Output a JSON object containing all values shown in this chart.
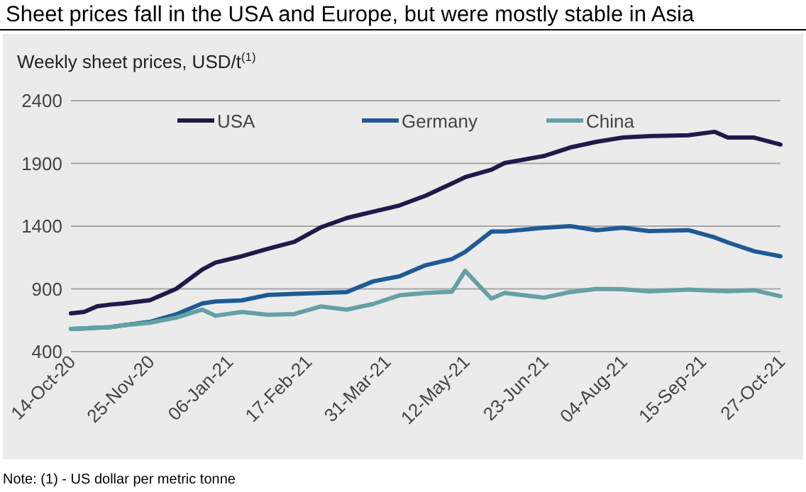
{
  "chart_data": {
    "type": "line",
    "title": "Sheet prices fall in the USA and Europe, but were mostly stable in Asia",
    "subtitle": "Weekly sheet prices, USD/t$^{(1)}$",
    "x": [
      "2020-10-14",
      "2020-10-21",
      "2020-10-28",
      "2020-11-04",
      "2020-11-11",
      "2020-11-25",
      "2020-12-09",
      "2020-12-23",
      "2020-12-30",
      "2021-01-13",
      "2021-01-27",
      "2021-02-10",
      "2021-02-24",
      "2021-03-10",
      "2021-03-24",
      "2021-04-07",
      "2021-04-21",
      "2021-05-05",
      "2021-05-12",
      "2021-05-26",
      "2021-06-02",
      "2021-06-23",
      "2021-07-07",
      "2021-07-21",
      "2021-08-04",
      "2021-08-18",
      "2021-09-08",
      "2021-09-22",
      "2021-09-29",
      "2021-10-13",
      "2021-10-27"
    ],
    "series": [
      {
        "name": "USA",
        "color": "#1f1a4a",
        "values": [
          705,
          716,
          762,
          775,
          784,
          810,
          900,
          1055,
          1110,
          1160,
          1220,
          1275,
          1390,
          1465,
          1515,
          1565,
          1643,
          1740,
          1790,
          1850,
          1903,
          1959,
          2027,
          2072,
          2106,
          2118,
          2125,
          2152,
          2106,
          2106,
          2050
        ]
      },
      {
        "name": "Germany",
        "color": "#1f5a96",
        "values": [
          581,
          585,
          590,
          595,
          610,
          637,
          697,
          784,
          800,
          808,
          852,
          860,
          867,
          875,
          960,
          1000,
          1089,
          1138,
          1194,
          1357,
          1357,
          1387,
          1400,
          1368,
          1387,
          1360,
          1368,
          1310,
          1270,
          1200,
          1160
        ]
      },
      {
        "name": "China",
        "color": "#65a0a4",
        "values": [
          581,
          585,
          590,
          595,
          610,
          630,
          671,
          735,
          686,
          716,
          694,
          700,
          760,
          735,
          780,
          849,
          867,
          878,
          1044,
          822,
          867,
          830,
          875,
          900,
          897,
          880,
          894,
          885,
          882,
          889,
          841
        ]
      }
    ],
    "xlim": [
      "2020-10-14",
      "2021-10-27"
    ],
    "xticks": [
      {
        "value": "2020-10-14",
        "label": "14-Oct-20"
      },
      {
        "value": "2020-11-25",
        "label": "25-Nov-20"
      },
      {
        "value": "2021-01-06",
        "label": "06-Jan-21"
      },
      {
        "value": "2021-02-17",
        "label": "17-Feb-21"
      },
      {
        "value": "2021-03-31",
        "label": "31-Mar-21"
      },
      {
        "value": "2021-05-12",
        "label": "12-May-21"
      },
      {
        "value": "2021-06-23",
        "label": "23-Jun-21"
      },
      {
        "value": "2021-08-04",
        "label": "04-Aug-21"
      },
      {
        "value": "2021-09-15",
        "label": "15-Sep-21"
      },
      {
        "value": "2021-10-27",
        "label": "27-Oct-21"
      }
    ],
    "ylim": [
      400,
      2400
    ],
    "yticks": [
      400,
      900,
      1400,
      1900,
      2400
    ],
    "grid": "y",
    "legend": "top",
    "marker": "none",
    "line_style": "solid",
    "annotations": [
      "Note: (1) - US dollar per metric tonne"
    ]
  }
}
